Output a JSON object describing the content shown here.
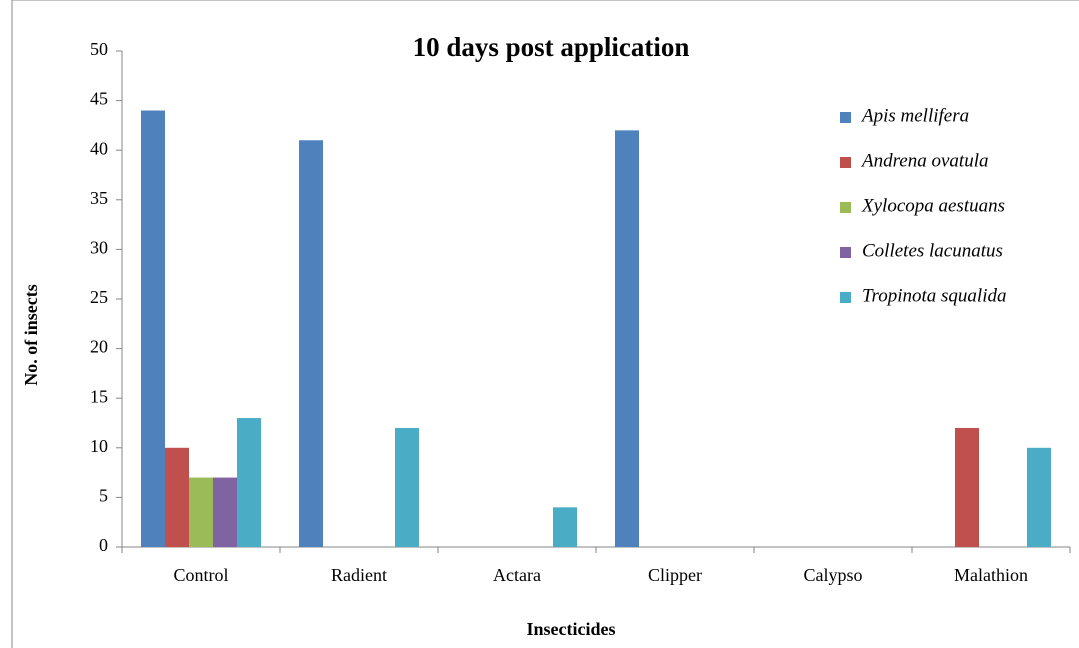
{
  "chart_data": {
    "type": "bar",
    "title": "10 days post application",
    "x_label": "Insecticides",
    "y_label": "No. of insects",
    "categories": [
      "Control",
      "Radient",
      "Actara",
      "Clipper",
      "Calypso",
      "Malathion"
    ],
    "series": [
      {
        "name": "Apis mellifera",
        "color": "#4f81bd",
        "values": [
          44,
          41,
          0,
          42,
          0,
          0
        ]
      },
      {
        "name": "Andrena ovatula",
        "color": "#c0504d",
        "values": [
          10,
          0,
          0,
          0,
          0,
          12
        ]
      },
      {
        "name": "Xylocopa aestuans",
        "color": "#9bbb59",
        "values": [
          7,
          0,
          0,
          0,
          0,
          0
        ]
      },
      {
        "name": "Colletes lacunatus",
        "color": "#8064a2",
        "values": [
          7,
          0,
          0,
          0,
          0,
          0
        ]
      },
      {
        "name": "Tropinota squalida",
        "color": "#4bacc6",
        "values": [
          13,
          12,
          4,
          0,
          0,
          10
        ]
      }
    ],
    "ylim": [
      0,
      50
    ],
    "yticks": [
      0,
      5,
      10,
      15,
      20,
      25,
      30,
      35,
      40,
      45,
      50
    ],
    "grid": false,
    "legend": "right"
  }
}
